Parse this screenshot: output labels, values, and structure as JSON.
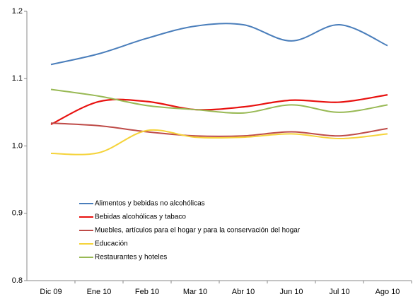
{
  "chart_data": {
    "type": "line",
    "categories": [
      "Dic 09",
      "Ene 10",
      "Feb 10",
      "Mar 10",
      "Abr 10",
      "Jun 10",
      "Jul 10",
      "Ago 10"
    ],
    "series": [
      {
        "name": "Alimentos y bebidas no alcohólicas",
        "color": "#4a7ebb",
        "values": [
          1.121,
          1.137,
          1.16,
          1.178,
          1.18,
          1.156,
          1.18,
          1.149
        ]
      },
      {
        "name": "Bebidas alcohólicas y tabaco",
        "color": "#e8110f",
        "values": [
          1.032,
          1.066,
          1.066,
          1.054,
          1.058,
          1.068,
          1.065,
          1.076
        ]
      },
      {
        "name": "Muebles, artículos para el hogar y para la conservación del hogar",
        "color": "#be4b48",
        "values": [
          1.034,
          1.03,
          1.021,
          1.015,
          1.015,
          1.021,
          1.015,
          1.026
        ]
      },
      {
        "name": "Educación",
        "color": "#f5d33a",
        "values": [
          0.989,
          0.99,
          1.023,
          1.013,
          1.013,
          1.018,
          1.011,
          1.018
        ]
      },
      {
        "name": "Restaurantes y hoteles",
        "color": "#98b954",
        "values": [
          1.084,
          1.074,
          1.06,
          1.054,
          1.049,
          1.061,
          1.05,
          1.061
        ]
      }
    ],
    "ylim": [
      0.8,
      1.2
    ],
    "yticks": [
      0.8,
      0.9,
      {
        "value": 1,
        "label": "1.0"
      },
      1.1,
      1.2
    ],
    "grid": false,
    "legend": "lower left"
  }
}
